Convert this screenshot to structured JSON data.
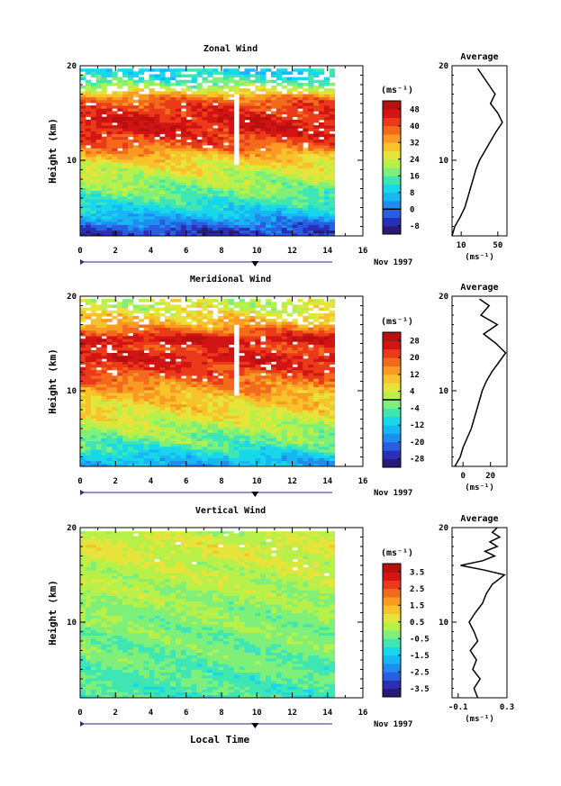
{
  "chart_data": [
    {
      "type": "heatmap",
      "title": "Zonal Wind",
      "xlabel": "",
      "ylabel": "Height (km)",
      "xlim": [
        0,
        16
      ],
      "ylim": [
        2,
        20
      ],
      "x_ticks": [
        "0",
        "2",
        "4",
        "6",
        "8",
        "10",
        "12",
        "14",
        "16"
      ],
      "y_ticks": [
        "10",
        "20"
      ],
      "date_label": "Nov 1997",
      "data_end_hour": 14.4,
      "colorbar": {
        "unit_label": "(ms⁻¹)",
        "ticks": [
          "48",
          "40",
          "32",
          "24",
          "16",
          "8",
          "0",
          "-8"
        ],
        "min": -12,
        "max": 52,
        "zero_level": 0
      },
      "field": {
        "profile": [
          [
            2.5,
            -5
          ],
          [
            3.5,
            2
          ],
          [
            4.5,
            8
          ],
          [
            5.5,
            13
          ],
          [
            6.5,
            17
          ],
          [
            7.5,
            20
          ],
          [
            8.5,
            23
          ],
          [
            9.5,
            26
          ],
          [
            10.5,
            31
          ],
          [
            11.5,
            38
          ],
          [
            12.5,
            43
          ],
          [
            13.5,
            46
          ],
          [
            14.5,
            45
          ],
          [
            15.5,
            42
          ],
          [
            16.5,
            38
          ],
          [
            17.5,
            24
          ],
          [
            18.5,
            14
          ],
          [
            19.5,
            9
          ]
        ],
        "variability": 5,
        "top_km": 19.7
      },
      "average": {
        "title": "Average",
        "xlabel": "(ms⁻¹)",
        "x_ticks": [
          "10",
          "50"
        ],
        "xlim": [
          0,
          60
        ],
        "y_ticks": [
          "10",
          "20"
        ],
        "height_km": [
          2,
          3,
          4,
          5,
          6,
          7,
          8,
          9,
          10,
          11,
          12,
          13,
          14,
          15,
          16,
          17,
          18,
          19,
          19.7
        ],
        "values": [
          -4,
          3,
          9,
          14,
          17,
          20,
          23,
          26,
          30,
          36,
          42,
          48,
          55,
          50,
          42,
          47,
          40,
          33,
          28
        ]
      }
    },
    {
      "type": "heatmap",
      "title": "Meridional Wind",
      "xlabel": "",
      "ylabel": "Height (km)",
      "xlim": [
        0,
        16
      ],
      "ylim": [
        2,
        20
      ],
      "x_ticks": [
        "0",
        "2",
        "4",
        "6",
        "8",
        "10",
        "12",
        "14",
        "16"
      ],
      "y_ticks": [
        "10",
        "20"
      ],
      "date_label": "Nov 1997",
      "data_end_hour": 14.4,
      "colorbar": {
        "unit_label": "(ms⁻¹)",
        "ticks": [
          "28",
          "20",
          "12",
          "4",
          "-4",
          "-12",
          "-20",
          "-28"
        ],
        "min": -32,
        "max": 32,
        "zero_level": 0
      },
      "field": {
        "profile": [
          [
            2.5,
            -14
          ],
          [
            3.5,
            -9
          ],
          [
            4.5,
            -4
          ],
          [
            5.5,
            -1
          ],
          [
            6.5,
            3
          ],
          [
            7.5,
            6
          ],
          [
            8.5,
            8
          ],
          [
            9.5,
            11
          ],
          [
            10.5,
            15
          ],
          [
            11.5,
            19
          ],
          [
            12.5,
            23
          ],
          [
            13.5,
            26
          ],
          [
            14.5,
            21
          ],
          [
            15.5,
            27
          ],
          [
            16.5,
            17
          ],
          [
            17.5,
            10
          ],
          [
            18.5,
            5
          ],
          [
            19.5,
            3
          ]
        ],
        "variability": 5,
        "top_km": 19.7
      },
      "average": {
        "title": "Average",
        "xlabel": "(ms⁻¹)",
        "x_ticks": [
          "0",
          "20"
        ],
        "xlim": [
          -8,
          32
        ],
        "y_ticks": [
          "10",
          "20"
        ],
        "height_km": [
          2,
          3,
          4,
          5,
          6,
          7,
          8,
          9,
          10,
          11,
          12,
          13,
          14,
          15,
          16,
          17,
          18,
          19,
          19.7
        ],
        "values": [
          -6,
          -2,
          0,
          3,
          6,
          8,
          10,
          12,
          14,
          17,
          21,
          26,
          31,
          24,
          15,
          25,
          13,
          19,
          12
        ]
      }
    },
    {
      "type": "heatmap",
      "title": "Vertical Wind",
      "xlabel": "Local Time",
      "ylabel": "Height (km)",
      "xlim": [
        0,
        16
      ],
      "ylim": [
        2,
        20
      ],
      "x_ticks": [
        "0",
        "2",
        "4",
        "6",
        "8",
        "10",
        "12",
        "14",
        "16"
      ],
      "y_ticks": [
        "10",
        "20"
      ],
      "date_label": "Nov 1997",
      "data_end_hour": 14.4,
      "colorbar": {
        "unit_label": "(ms⁻¹)",
        "ticks": [
          "3.5",
          "2.5",
          "1.5",
          "0.5",
          "-0.5",
          "-1.5",
          "-2.5",
          "-3.5"
        ],
        "min": -4,
        "max": 4,
        "zero_level": null
      },
      "field": {
        "profile": [
          [
            2.5,
            -0.7
          ],
          [
            5,
            -0.5
          ],
          [
            8,
            -0.3
          ],
          [
            11,
            -0.1
          ],
          [
            14,
            0.2
          ],
          [
            16,
            0.4
          ],
          [
            18,
            0.6
          ],
          [
            19.5,
            0.3
          ]
        ],
        "variability": 0.45,
        "top_km": 19.6
      },
      "average": {
        "title": "Average",
        "xlabel": "(ms⁻¹)",
        "x_ticks": [
          "-0.1",
          "0.3"
        ],
        "xlim": [
          -0.15,
          0.3
        ],
        "y_ticks": [
          "10",
          "20"
        ],
        "height_km": [
          2,
          3,
          4,
          5,
          6,
          7,
          8,
          9,
          10,
          11,
          12,
          13,
          14,
          15,
          15.5,
          16,
          16.5,
          17,
          17.5,
          18,
          18.5,
          19,
          19.5,
          20
        ],
        "values": [
          0.06,
          0.03,
          0.08,
          0.02,
          0.05,
          0.0,
          0.06,
          0.03,
          -0.01,
          0.04,
          0.1,
          0.13,
          0.18,
          0.28,
          0.12,
          -0.08,
          0.1,
          0.2,
          0.12,
          0.22,
          0.16,
          0.24,
          0.18,
          0.22
        ]
      }
    }
  ]
}
